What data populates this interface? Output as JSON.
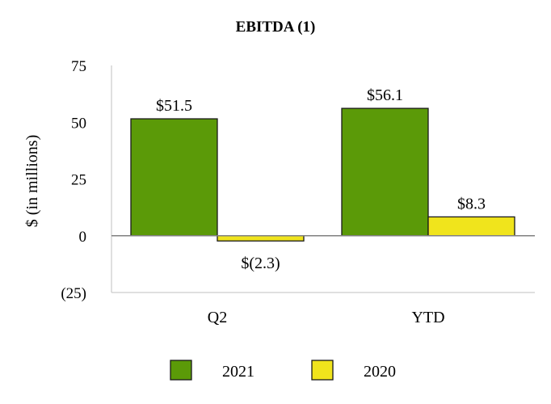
{
  "chart_data": {
    "type": "bar",
    "title": "EBITDA (1)",
    "ylabel": "$ (in millions)",
    "xlabel": "",
    "categories": [
      "Q2",
      "YTD"
    ],
    "ylim": [
      -25,
      75
    ],
    "yticks": [
      {
        "value": 75,
        "label": "75"
      },
      {
        "value": 50,
        "label": "50"
      },
      {
        "value": 25,
        "label": "25"
      },
      {
        "value": 0,
        "label": "0"
      },
      {
        "value": -25,
        "label": "(25)"
      }
    ],
    "series": [
      {
        "name": "2021",
        "color": "#5b9a08",
        "values": [
          51.5,
          56.1
        ],
        "labels": [
          "$51.5",
          "$56.1"
        ]
      },
      {
        "name": "2020",
        "color": "#f0e41c",
        "values": [
          -2.3,
          8.3
        ],
        "labels": [
          "$(2.3)",
          "$8.3"
        ]
      }
    ],
    "legend_position": "bottom",
    "grid": false
  }
}
